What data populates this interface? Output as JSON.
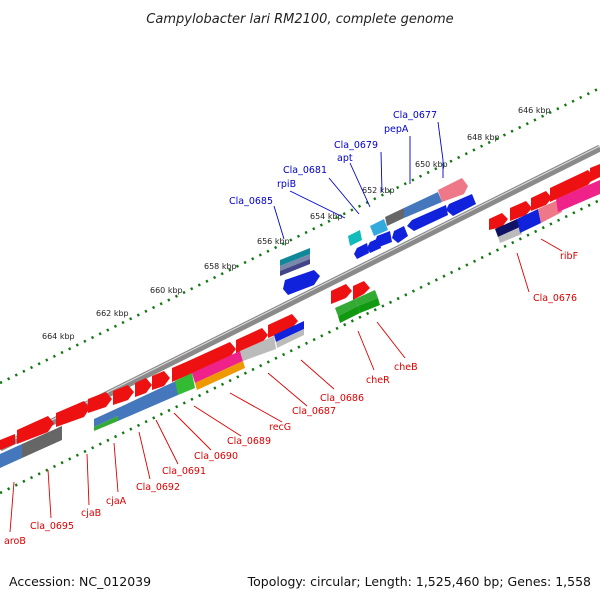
{
  "title": "Campylobacter lari RM2100, complete genome",
  "footer": {
    "accession": "Accession: NC_012039",
    "topology": "Topology: circular; Length: 1,525,460 bp; Genes: 1,558"
  },
  "colors": {
    "blue_label": "#0000cc",
    "red_label": "#dd0000",
    "tick": "#117711",
    "backbone": "#777777"
  },
  "ticks": [
    "646 kbp",
    "648 kbp",
    "650 kbp",
    "652 kbp",
    "654 kbp",
    "656 kbp",
    "658 kbp",
    "660 kbp",
    "662 kbp",
    "664 kbp"
  ],
  "labels_top": [
    "Cla_0677",
    "pepA",
    "Cla_0679",
    "apt",
    "Cla_0681",
    "rpiB",
    "Cla_0685"
  ],
  "labels_bottom": [
    "ribF",
    "Cla_0676",
    "cheB",
    "cheR",
    "Cla_0686",
    "Cla_0687",
    "recG",
    "Cla_0689",
    "Cla_0690",
    "Cla_0691",
    "Cla_0692",
    "cjaA",
    "cjaB",
    "Cla_0695",
    "aroB"
  ]
}
